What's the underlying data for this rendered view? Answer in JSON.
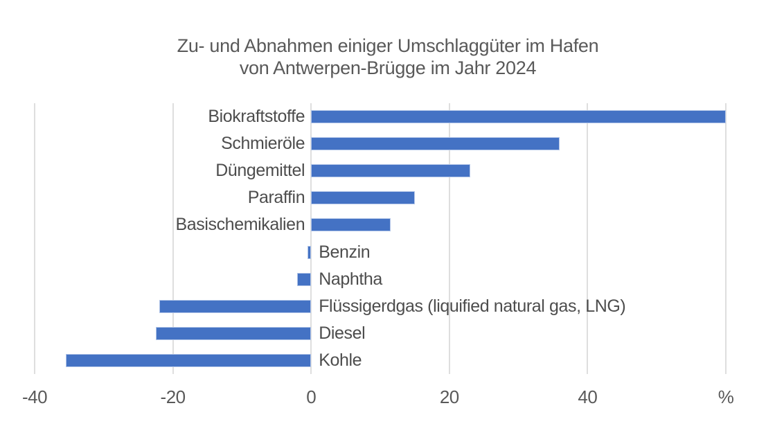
{
  "chart_data": {
    "type": "bar",
    "orientation": "horizontal",
    "title": "Zu- und Abnahmen einiger Umschlaggüter im Hafen von Antwerpen-Brügge im Jahr 2024",
    "title_lines": [
      "Zu- und Abnahmen einiger Umschlaggüter im Hafen",
      "von Antwerpen-Brügge im Jahr 2024"
    ],
    "unit": "%",
    "categories": [
      "Biokraftstoffe",
      "Schmieröle",
      "Düngemittel",
      "Paraffin",
      "Basischemikalien",
      "Benzin",
      "Naphtha",
      "Flüssigerdgas (liquified natural gas, LNG)",
      "Diesel",
      "Kohle"
    ],
    "values": [
      60,
      36,
      23,
      15,
      11.5,
      -0.5,
      -2,
      -22,
      -22.5,
      -35.5
    ],
    "xlabel": "",
    "ylabel": "",
    "xlim": [
      -40,
      60
    ],
    "x_ticks": [
      {
        "label": "-40",
        "value": -40
      },
      {
        "label": "-20",
        "value": -20
      },
      {
        "label": "0",
        "value": 0
      },
      {
        "label": "20",
        "value": 20
      },
      {
        "label": "40",
        "value": 40
      },
      {
        "label": "%",
        "value": 60
      }
    ],
    "grid": "vertical-only",
    "legend": "none",
    "colors": {
      "bar_fill": "#4472C4",
      "bar_border": "#B3C6E8",
      "gridline": "#DEDEDE",
      "title_text": "#595959",
      "axis_text": "#595959",
      "label_text": "#4D4D4D",
      "background": "#FFFFFF"
    }
  }
}
